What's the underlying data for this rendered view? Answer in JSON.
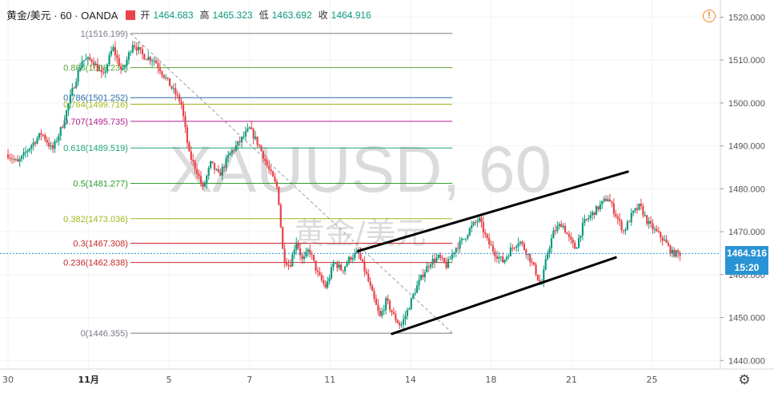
{
  "legend": {
    "symbol": "黄金/美元 · 60 · OANDA",
    "open_label": "开",
    "open": "1464.683",
    "high_label": "高",
    "high": "1465.323",
    "low_label": "低",
    "low": "1463.692",
    "close_label": "收",
    "close": "1464.916"
  },
  "watermark": {
    "main": "XAUUSD, 60",
    "sub": "黄金/美元"
  },
  "price_tag": {
    "value": "1464.916",
    "countdown": "15:20",
    "color": "#2a93d5"
  },
  "icons": {
    "alert": "warning-circle-icon",
    "settings": "gear-icon"
  },
  "colors": {
    "up": "#0f9a7d",
    "down": "#e8434a",
    "trendline": "#000000"
  },
  "chart_data": {
    "type": "candlestick",
    "y_axis": {
      "range": [
        1438,
        1524
      ],
      "ticks": [
        "1440.000",
        "1450.000",
        "1460.000",
        "1470.000",
        "1480.000",
        "1490.000",
        "1500.000",
        "1510.000",
        "1520.000"
      ]
    },
    "x_axis": {
      "ticks": [
        {
          "label": "30",
          "t": 0
        },
        {
          "label": "11月",
          "t": 1
        },
        {
          "label": "5",
          "t": 2
        },
        {
          "label": "7",
          "t": 3
        },
        {
          "label": "11",
          "t": 4
        },
        {
          "label": "14",
          "t": 5
        },
        {
          "label": "18",
          "t": 6
        },
        {
          "label": "21",
          "t": 7
        },
        {
          "label": "25",
          "t": 8
        }
      ]
    },
    "fibonacci": {
      "levels": [
        {
          "ratio": "1",
          "price": 1516.199,
          "label": "1(1516.199)",
          "color": "#787b86"
        },
        {
          "ratio": "0.886",
          "price": 1508.237,
          "label": "0.886(1508.237)",
          "color": "#57a333"
        },
        {
          "ratio": "0.786",
          "price": 1501.252,
          "label": "0.786(1501.252)",
          "color": "#2e6ca8"
        },
        {
          "ratio": "0.764",
          "price": 1499.716,
          "label": "0.764(1499.716)",
          "color": "#9fb81c"
        },
        {
          "ratio": "0.707",
          "price": 1495.735,
          "label": "0.707(1495.735)",
          "color": "#b0208a"
        },
        {
          "ratio": "0.618",
          "price": 1489.519,
          "label": "0.618(1489.519)",
          "color": "#1fa679"
        },
        {
          "ratio": "0.5",
          "price": 1481.277,
          "label": "0.5(1481.277)",
          "color": "#2e9b2e"
        },
        {
          "ratio": "0.382",
          "price": 1473.036,
          "label": "0.382(1473.036)",
          "color": "#9fb81c"
        },
        {
          "ratio": "0.3",
          "price": 1467.308,
          "label": "0.3(1467.308)",
          "color": "#c62828"
        },
        {
          "ratio": "0.236",
          "price": 1462.838,
          "label": "0.236(1462.838)",
          "color": "#c62828"
        },
        {
          "ratio": "0",
          "price": 1446.355,
          "label": "0(1446.355)",
          "color": "#787b86"
        }
      ]
    },
    "trendlines": [
      {
        "from": [
          4.35,
          1465.5
        ],
        "to": [
          7.7,
          1484
        ]
      },
      {
        "from": [
          4.77,
          1446.2
        ],
        "to": [
          7.55,
          1464
        ]
      }
    ],
    "path": [
      [
        0,
        1488
      ],
      [
        0.12,
        1486
      ],
      [
        0.28,
        1490
      ],
      [
        0.42,
        1493
      ],
      [
        0.55,
        1489
      ],
      [
        0.68,
        1495
      ],
      [
        0.8,
        1503
      ],
      [
        0.92,
        1510
      ],
      [
        1.05,
        1510
      ],
      [
        1.18,
        1506
      ],
      [
        1.3,
        1513
      ],
      [
        1.42,
        1507
      ],
      [
        1.55,
        1514
      ],
      [
        1.68,
        1511
      ],
      [
        1.82,
        1510
      ],
      [
        1.95,
        1506
      ],
      [
        2.05,
        1503
      ],
      [
        2.15,
        1500
      ],
      [
        2.25,
        1488
      ],
      [
        2.35,
        1484
      ],
      [
        2.42,
        1480
      ],
      [
        2.52,
        1486
      ],
      [
        2.62,
        1483
      ],
      [
        2.75,
        1488
      ],
      [
        2.88,
        1491
      ],
      [
        3.0,
        1494
      ],
      [
        3.12,
        1490
      ],
      [
        3.25,
        1484
      ],
      [
        3.35,
        1480
      ],
      [
        3.42,
        1464
      ],
      [
        3.5,
        1462
      ],
      [
        3.58,
        1468
      ],
      [
        3.66,
        1463
      ],
      [
        3.74,
        1466
      ],
      [
        3.85,
        1460
      ],
      [
        3.95,
        1457
      ],
      [
        4.05,
        1463
      ],
      [
        4.15,
        1461
      ],
      [
        4.25,
        1464
      ],
      [
        4.35,
        1465
      ],
      [
        4.45,
        1460
      ],
      [
        4.55,
        1454
      ],
      [
        4.62,
        1450
      ],
      [
        4.7,
        1454
      ],
      [
        4.8,
        1450
      ],
      [
        4.88,
        1448
      ],
      [
        4.95,
        1451
      ],
      [
        5.05,
        1456
      ],
      [
        5.15,
        1460
      ],
      [
        5.25,
        1463
      ],
      [
        5.35,
        1464
      ],
      [
        5.45,
        1462
      ],
      [
        5.55,
        1466
      ],
      [
        5.65,
        1468
      ],
      [
        5.75,
        1471
      ],
      [
        5.85,
        1473
      ],
      [
        5.95,
        1468
      ],
      [
        6.05,
        1465
      ],
      [
        6.15,
        1463
      ],
      [
        6.25,
        1466
      ],
      [
        6.35,
        1468
      ],
      [
        6.45,
        1465
      ],
      [
        6.55,
        1461
      ],
      [
        6.62,
        1457
      ],
      [
        6.7,
        1465
      ],
      [
        6.78,
        1470
      ],
      [
        6.88,
        1472
      ],
      [
        6.98,
        1468
      ],
      [
        7.05,
        1466
      ],
      [
        7.15,
        1472
      ],
      [
        7.25,
        1474
      ],
      [
        7.35,
        1476
      ],
      [
        7.45,
        1478
      ],
      [
        7.55,
        1474
      ],
      [
        7.65,
        1470
      ],
      [
        7.75,
        1474
      ],
      [
        7.85,
        1476
      ],
      [
        7.95,
        1472
      ],
      [
        8.05,
        1470
      ],
      [
        8.15,
        1468
      ],
      [
        8.25,
        1465
      ],
      [
        8.35,
        1464.9
      ]
    ]
  }
}
